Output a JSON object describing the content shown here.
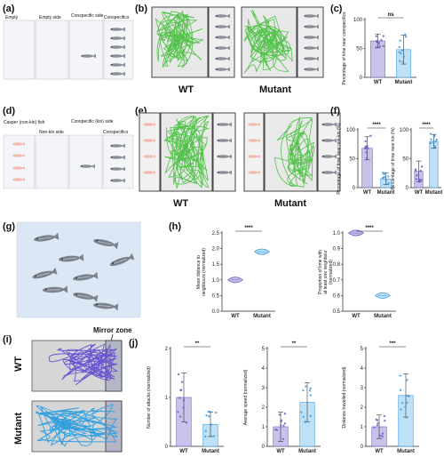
{
  "panel_letters": {
    "a": "(a)",
    "b": "(b)",
    "c": "(c)",
    "d": "(d)",
    "e": "(e)",
    "f": "(f)",
    "g": "(g)",
    "h": "(h)",
    "i": "(i)",
    "j": "(j)"
  },
  "schematic_a": {
    "labels": [
      "Empty",
      "Empty side",
      "Conspecific side",
      "Conspecifics"
    ]
  },
  "schematic_d": {
    "labels": [
      "Casper (non-kin) fish",
      "Non-kin side",
      "Conspecific (kin) side",
      "Conspecifics"
    ]
  },
  "track_labels": {
    "wt": "WT",
    "mutant": "Mutant",
    "mirror_zone": "Mirror zone"
  },
  "colors": {
    "wt_fill": "#c9c2ea",
    "wt_stroke": "#6f5fbf",
    "mutant_fill": "#bfe1f7",
    "mutant_stroke": "#3d9be0",
    "track_green": "#52c24a",
    "track_purple": "#6a55d0",
    "track_blue": "#2f9fe0"
  },
  "chart_data": [
    {
      "id": "c",
      "type": "bar",
      "ylabel": "Percentage of time near conspecifics",
      "categories": [
        "WT",
        "Mutant"
      ],
      "values": [
        63,
        48
      ],
      "errors": [
        12,
        25
      ],
      "ylim": [
        0,
        100
      ],
      "yticks": [
        0,
        50,
        100
      ],
      "significance": "ns"
    },
    {
      "id": "f1",
      "type": "bar",
      "ylabel": "Percentage of time near non-kin (%)",
      "categories": [
        "WT",
        "Mutant"
      ],
      "values": [
        68,
        15
      ],
      "errors": [
        20,
        10
      ],
      "ylim": [
        0,
        100
      ],
      "yticks": [
        0,
        50,
        100
      ],
      "significance": "****"
    },
    {
      "id": "f2",
      "type": "bar",
      "ylabel": "Percentage of time near kin (%)",
      "categories": [
        "WT",
        "Mutant"
      ],
      "values": [
        28,
        80
      ],
      "errors": [
        18,
        12
      ],
      "ylim": [
        0,
        100
      ],
      "yticks": [
        0,
        50,
        100
      ],
      "significance": "****"
    },
    {
      "id": "h1",
      "type": "violin",
      "ylabel": "Mean distance to neighbours (normalized)",
      "categories": [
        "WT",
        "Mutant"
      ],
      "values": [
        1.0,
        1.9
      ],
      "ylim": [
        0,
        2.5
      ],
      "yticks": [
        0.0,
        0.5,
        1.0,
        1.5,
        2.0,
        2.5
      ],
      "significance": "****"
    },
    {
      "id": "h2",
      "type": "violin",
      "ylabel": "Proportion of time with at least one neighbour (normalized)",
      "categories": [
        "WT",
        "Mutant"
      ],
      "values": [
        1.0,
        0.6
      ],
      "ylim": [
        0.5,
        1.0
      ],
      "yticks": [
        0.5,
        0.6,
        0.7,
        0.8,
        0.9,
        1.0
      ],
      "significance": "****"
    },
    {
      "id": "j1",
      "type": "bar",
      "ylabel": "Number of attacks (normalized)",
      "categories": [
        "WT",
        "Mutant"
      ],
      "values": [
        1.0,
        0.45
      ],
      "errors": [
        0.5,
        0.25
      ],
      "ylim": [
        0,
        2
      ],
      "yticks": [
        0,
        1,
        2
      ],
      "significance": "**"
    },
    {
      "id": "j2",
      "type": "bar",
      "ylabel": "Average speed (normalized)",
      "categories": [
        "WT",
        "Mutant"
      ],
      "values": [
        1.0,
        2.25
      ],
      "errors": [
        0.75,
        1.0
      ],
      "ylim": [
        0,
        5
      ],
      "yticks": [
        0,
        1,
        2,
        3,
        4,
        5
      ],
      "significance": "**"
    },
    {
      "id": "j3",
      "type": "bar",
      "ylabel": "Distance travelled (normalized)",
      "categories": [
        "WT",
        "Mutant"
      ],
      "values": [
        1.0,
        2.6
      ],
      "errors": [
        0.6,
        1.1
      ],
      "ylim": [
        0,
        5
      ],
      "yticks": [
        0,
        1,
        2,
        3,
        4,
        5
      ],
      "significance": "***"
    }
  ]
}
